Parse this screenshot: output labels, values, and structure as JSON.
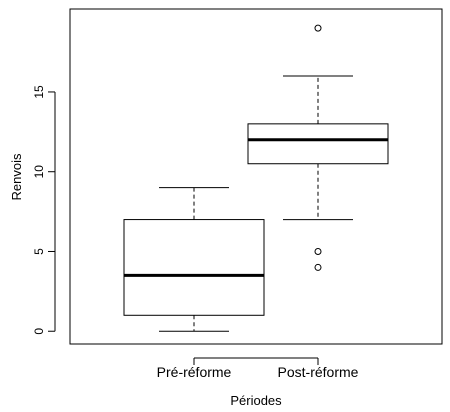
{
  "chart_data": {
    "type": "boxplot",
    "title": "",
    "xlabel": "Périodes",
    "ylabel": "Renvois",
    "categories": [
      "Pré-réforme",
      "Post-réforme"
    ],
    "ylim": [
      -0.8,
      20.2
    ],
    "yticks": [
      "0",
      "5",
      "10",
      "15"
    ],
    "grid": false,
    "boxes": [
      {
        "whisker_low": 0,
        "q1": 1,
        "median": 3.5,
        "q3": 7,
        "whisker_high": 9,
        "outliers": []
      },
      {
        "whisker_low": 7,
        "q1": 10.5,
        "median": 12,
        "q3": 13,
        "whisker_high": 16,
        "outliers": [
          19,
          5,
          4
        ]
      }
    ]
  }
}
